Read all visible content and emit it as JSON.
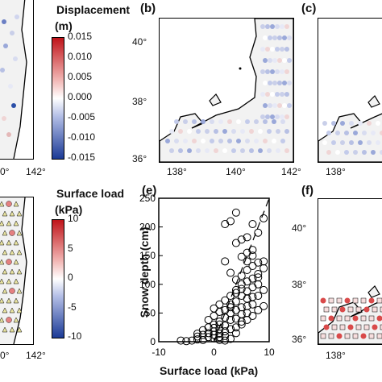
{
  "panels": {
    "b": {
      "label": "(b)"
    },
    "c": {
      "label": "(c)"
    },
    "e": {
      "label": "(e)"
    },
    "f": {
      "label": "(f)"
    }
  },
  "map_ticks": {
    "lat_40": "40°",
    "lat_38": "38°",
    "lat_36": "36°",
    "lon_138": "138°",
    "lon_140": "140°",
    "lon_142": "142°",
    "lon_140_partial": "0°"
  },
  "colorbar_displacement": {
    "title": "Displacement",
    "unit": "(m)",
    "ticks": [
      "0.015",
      "0.010",
      "0.005",
      "0.000",
      "-0.005",
      "-0.010",
      "-0.015"
    ]
  },
  "colorbar_load": {
    "title": "Surface load",
    "unit": "(kPa)",
    "ticks": [
      "10",
      "5",
      "0",
      "-5",
      "-10"
    ]
  },
  "colors": {
    "land": "#f2f2f2",
    "positive": "#d62728",
    "negative": "#2c4fa8",
    "neutral": "#ffffff"
  },
  "chart_data": {
    "type": "scatter",
    "title": "",
    "xlabel": "Surface load (kPa)",
    "ylabel": "Snow depth (cm)",
    "xlim": [
      -10,
      10
    ],
    "ylim": [
      0,
      250
    ],
    "x_ticks": [
      "-10",
      "0",
      "10"
    ],
    "y_ticks": [
      "0",
      "50",
      "100",
      "150",
      "200",
      "250"
    ],
    "marker": "open-circle",
    "trend_line": {
      "style": "dashed",
      "from": [
        0,
        0
      ],
      "to": [
        10,
        250
      ]
    },
    "points": [
      [
        -4,
        2
      ],
      [
        -3,
        4
      ],
      [
        -2,
        3
      ],
      [
        -1,
        8
      ],
      [
        -2,
        12
      ],
      [
        -3,
        14
      ],
      [
        0,
        6
      ],
      [
        1,
        3
      ],
      [
        0,
        18
      ],
      [
        1,
        22
      ],
      [
        -1,
        25
      ],
      [
        0,
        30
      ],
      [
        1,
        35
      ],
      [
        2,
        10
      ],
      [
        2,
        28
      ],
      [
        2,
        42
      ],
      [
        3,
        38
      ],
      [
        3,
        50
      ],
      [
        1,
        52
      ],
      [
        0,
        45
      ],
      [
        4,
        55
      ],
      [
        4,
        40
      ],
      [
        5,
        60
      ],
      [
        5,
        48
      ],
      [
        3,
        65
      ],
      [
        4,
        70
      ],
      [
        6,
        62
      ],
      [
        6,
        75
      ],
      [
        5,
        80
      ],
      [
        7,
        78
      ],
      [
        6,
        88
      ],
      [
        7,
        95
      ],
      [
        5,
        100
      ],
      [
        6,
        105
      ],
      [
        7,
        110
      ],
      [
        8,
        112
      ],
      [
        8,
        118
      ],
      [
        6,
        125
      ],
      [
        7,
        132
      ],
      [
        8,
        138
      ],
      [
        9,
        128
      ],
      [
        9,
        140
      ],
      [
        5,
        148
      ],
      [
        6,
        155
      ],
      [
        7,
        160
      ],
      [
        4,
        172
      ],
      [
        5,
        178
      ],
      [
        6,
        182
      ],
      [
        8,
        190
      ],
      [
        7,
        205
      ],
      [
        4,
        225
      ],
      [
        9,
        215
      ],
      [
        2,
        205
      ],
      [
        3,
        210
      ],
      [
        2,
        140
      ],
      [
        3,
        120
      ],
      [
        4,
        90
      ],
      [
        -1,
        38
      ],
      [
        -2,
        20
      ],
      [
        0,
        12
      ],
      [
        1,
        14
      ],
      [
        2,
        18
      ],
      [
        3,
        22
      ],
      [
        4,
        25
      ],
      [
        5,
        30
      ],
      [
        6,
        38
      ],
      [
        7,
        45
      ],
      [
        8,
        55
      ],
      [
        9,
        62
      ],
      [
        -5,
        1
      ],
      [
        -6,
        2
      ],
      [
        -3,
        9
      ],
      [
        0,
        58
      ],
      [
        1,
        65
      ],
      [
        2,
        72
      ],
      [
        3,
        80
      ],
      [
        4,
        85
      ],
      [
        5,
        92
      ],
      [
        8,
        80
      ],
      [
        9,
        90
      ],
      [
        8,
        100
      ],
      [
        7,
        65
      ],
      [
        6,
        50
      ],
      [
        5,
        35
      ],
      [
        4,
        15
      ],
      [
        3,
        5
      ],
      [
        2,
        2
      ],
      [
        1,
        8
      ],
      [
        -1,
        15
      ],
      [
        0,
        24
      ],
      [
        1,
        30
      ],
      [
        2,
        55
      ],
      [
        3,
        60
      ],
      [
        4,
        108
      ],
      [
        5,
        115
      ],
      [
        6,
        140
      ],
      [
        7,
        150
      ]
    ]
  }
}
